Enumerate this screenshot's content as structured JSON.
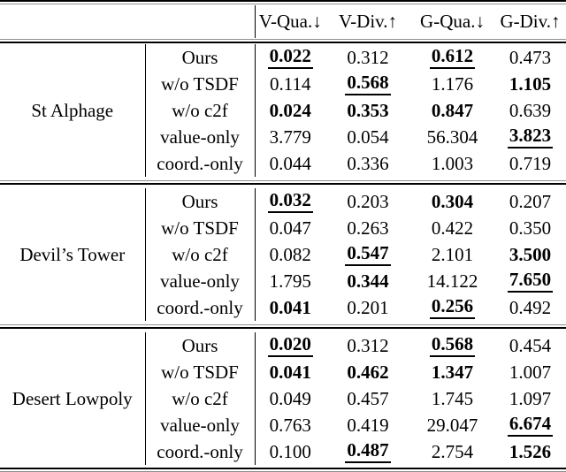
{
  "colors": {
    "text": "#000000",
    "rule_thick": "#000000",
    "rule_thin": "#8f8f8f"
  },
  "table": {
    "column_headers": [
      "V-Qua.↓",
      "V-Div.↑",
      "G-Qua.↓",
      "G-Div.↑"
    ],
    "groups": [
      {
        "name": "St Alphage",
        "rows": [
          {
            "method": "Ours",
            "values": [
              {
                "v": "0.022",
                "s": "bu"
              },
              {
                "v": "0.312",
                "s": ""
              },
              {
                "v": "0.612",
                "s": "bu"
              },
              {
                "v": "0.473",
                "s": ""
              }
            ]
          },
          {
            "method": "w/o TSDF",
            "values": [
              {
                "v": "0.114",
                "s": ""
              },
              {
                "v": "0.568",
                "s": "bu"
              },
              {
                "v": "1.176",
                "s": ""
              },
              {
                "v": "1.105",
                "s": "b"
              }
            ]
          },
          {
            "method": "w/o c2f",
            "values": [
              {
                "v": "0.024",
                "s": "b"
              },
              {
                "v": "0.353",
                "s": "b"
              },
              {
                "v": "0.847",
                "s": "b"
              },
              {
                "v": "0.639",
                "s": ""
              }
            ]
          },
          {
            "method": "value-only",
            "values": [
              {
                "v": "3.779",
                "s": ""
              },
              {
                "v": "0.054",
                "s": ""
              },
              {
                "v": "56.304",
                "s": ""
              },
              {
                "v": "3.823",
                "s": "bu"
              }
            ]
          },
          {
            "method": "coord.-only",
            "values": [
              {
                "v": "0.044",
                "s": ""
              },
              {
                "v": "0.336",
                "s": ""
              },
              {
                "v": "1.003",
                "s": ""
              },
              {
                "v": "0.719",
                "s": ""
              }
            ]
          }
        ]
      },
      {
        "name": "Devil’s Tower",
        "rows": [
          {
            "method": "Ours",
            "values": [
              {
                "v": "0.032",
                "s": "bu"
              },
              {
                "v": "0.203",
                "s": ""
              },
              {
                "v": "0.304",
                "s": "b"
              },
              {
                "v": "0.207",
                "s": ""
              }
            ]
          },
          {
            "method": "w/o TSDF",
            "values": [
              {
                "v": "0.047",
                "s": ""
              },
              {
                "v": "0.263",
                "s": ""
              },
              {
                "v": "0.422",
                "s": ""
              },
              {
                "v": "0.350",
                "s": ""
              }
            ]
          },
          {
            "method": "w/o c2f",
            "values": [
              {
                "v": "0.082",
                "s": ""
              },
              {
                "v": "0.547",
                "s": "bu"
              },
              {
                "v": "2.101",
                "s": ""
              },
              {
                "v": "3.500",
                "s": "b"
              }
            ]
          },
          {
            "method": "value-only",
            "values": [
              {
                "v": "1.795",
                "s": ""
              },
              {
                "v": "0.344",
                "s": "b"
              },
              {
                "v": "14.122",
                "s": ""
              },
              {
                "v": "7.650",
                "s": "bu"
              }
            ]
          },
          {
            "method": "coord.-only",
            "values": [
              {
                "v": "0.041",
                "s": "b"
              },
              {
                "v": "0.201",
                "s": ""
              },
              {
                "v": "0.256",
                "s": "bu"
              },
              {
                "v": "0.492",
                "s": ""
              }
            ]
          }
        ]
      },
      {
        "name": "Desert Lowpoly",
        "rows": [
          {
            "method": "Ours",
            "values": [
              {
                "v": "0.020",
                "s": "bu"
              },
              {
                "v": "0.312",
                "s": ""
              },
              {
                "v": "0.568",
                "s": "bu"
              },
              {
                "v": "0.454",
                "s": ""
              }
            ]
          },
          {
            "method": "w/o TSDF",
            "values": [
              {
                "v": "0.041",
                "s": "b"
              },
              {
                "v": "0.462",
                "s": "b"
              },
              {
                "v": "1.347",
                "s": "b"
              },
              {
                "v": "1.007",
                "s": ""
              }
            ]
          },
          {
            "method": "w/o c2f",
            "values": [
              {
                "v": "0.049",
                "s": ""
              },
              {
                "v": "0.457",
                "s": ""
              },
              {
                "v": "1.745",
                "s": ""
              },
              {
                "v": "1.097",
                "s": ""
              }
            ]
          },
          {
            "method": "value-only",
            "values": [
              {
                "v": "0.763",
                "s": ""
              },
              {
                "v": "0.419",
                "s": ""
              },
              {
                "v": "29.047",
                "s": ""
              },
              {
                "v": "6.674",
                "s": "bu"
              }
            ]
          },
          {
            "method": "coord.-only",
            "values": [
              {
                "v": "0.100",
                "s": ""
              },
              {
                "v": "0.487",
                "s": "bu"
              },
              {
                "v": "2.754",
                "s": ""
              },
              {
                "v": "1.526",
                "s": "b"
              }
            ]
          }
        ]
      }
    ]
  }
}
